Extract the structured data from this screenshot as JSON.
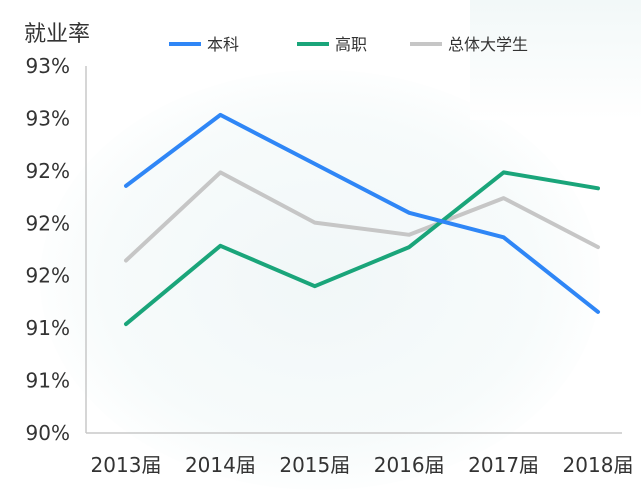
{
  "chart_data": {
    "type": "line",
    "ylabel": "就业率",
    "categories": [
      "2013届",
      "2014届",
      "2015届",
      "2016届",
      "2017届",
      "2018届"
    ],
    "y_tick_labels": [
      "90%",
      "91%",
      "91%",
      "92%",
      "92%",
      "92%",
      "93%",
      "93%"
    ],
    "ylim": [
      90.0,
      93.0
    ],
    "grid": false,
    "legend_position": "top",
    "series": [
      {
        "name": "本科",
        "color": "#2f86f6",
        "values": [
          92.02,
          92.6,
          92.2,
          91.8,
          91.6,
          90.99
        ]
      },
      {
        "name": "高职",
        "color": "#1aa57a",
        "values": [
          90.89,
          91.53,
          91.2,
          91.52,
          92.13,
          92.0
        ]
      },
      {
        "name": "总体大学生",
        "color": "#c6c6c6",
        "values": [
          91.41,
          92.13,
          91.72,
          91.62,
          91.92,
          91.52
        ]
      }
    ]
  }
}
